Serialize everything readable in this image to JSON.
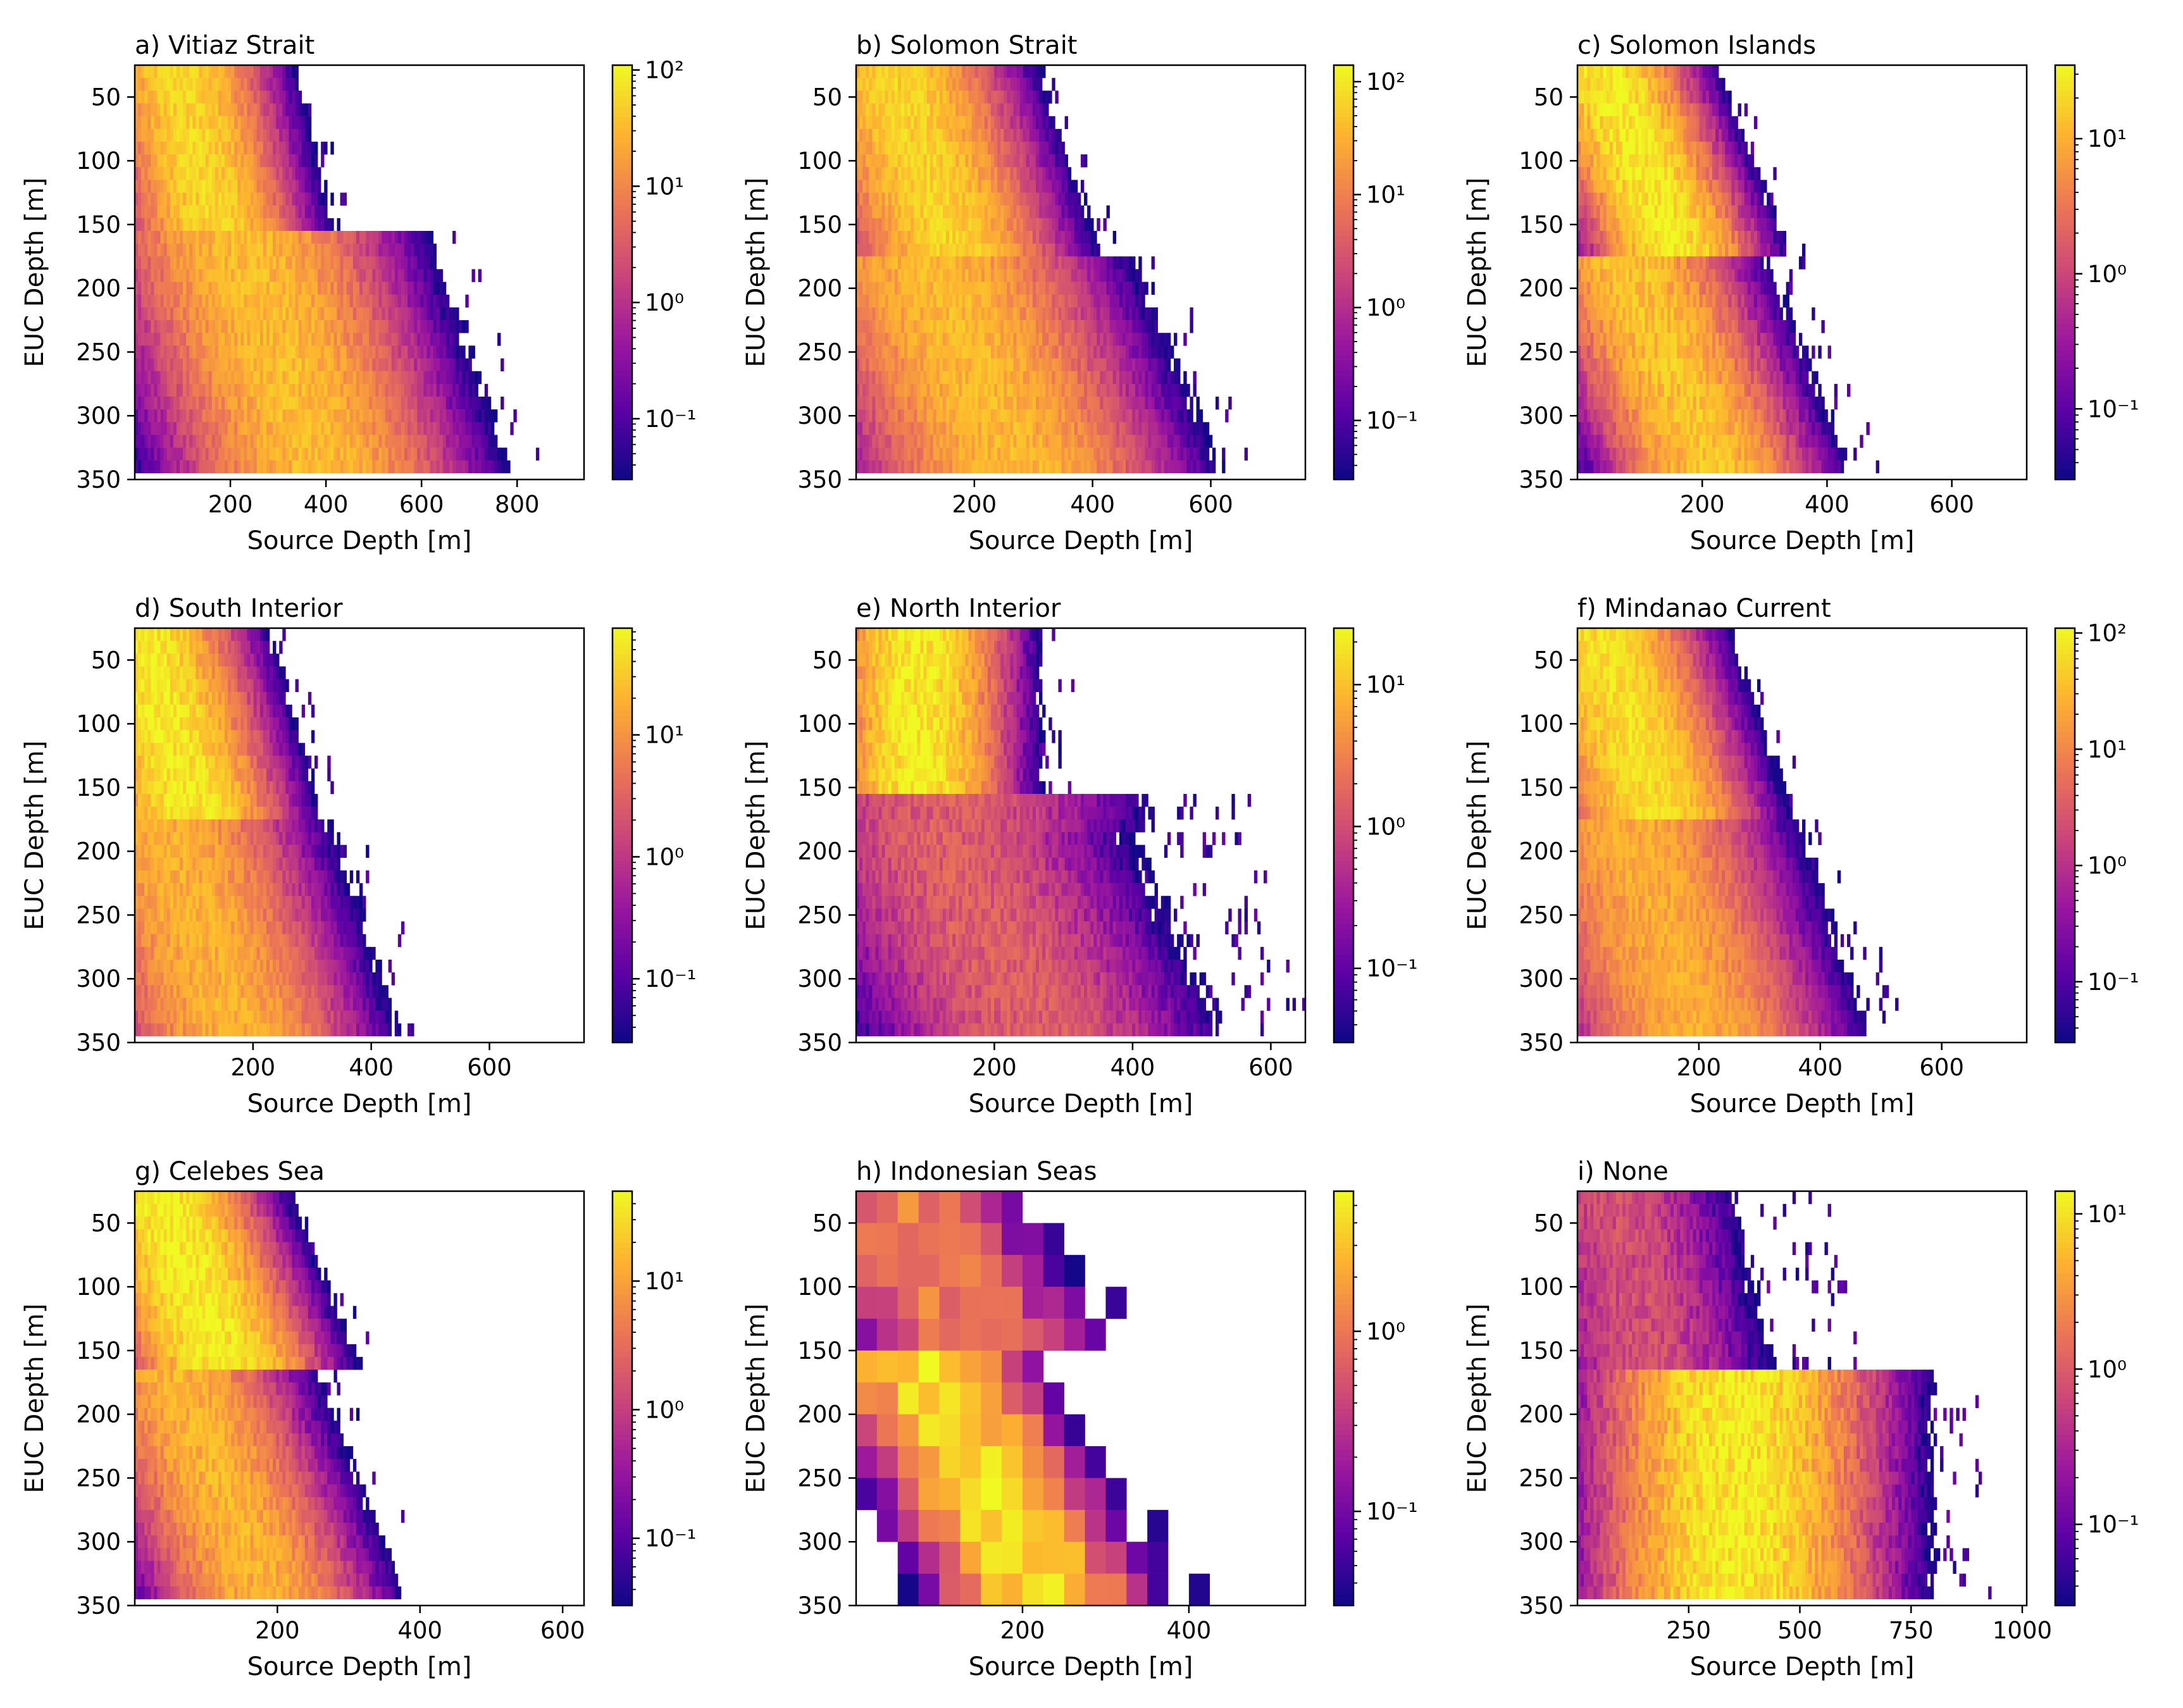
{
  "colormap": [
    "#0d0887",
    "#5c01a6",
    "#9c179e",
    "#cc4778",
    "#ed7953",
    "#fdb42f",
    "#f0f921"
  ],
  "ylabel": "EUC Depth [m]",
  "xlabel": "Source Depth [m]",
  "chart_data": [
    {
      "type": "heatmap",
      "title": "a) Vitiaz Strait",
      "xlabel": "Source Depth [m]",
      "ylabel": "EUC Depth [m]",
      "xlim": [
        0,
        940
      ],
      "ylim": [
        350,
        25
      ],
      "x_ticks": [
        200,
        400,
        600,
        800
      ],
      "y_ticks": [
        50,
        100,
        150,
        200,
        250,
        300,
        350
      ],
      "color_scale": "log",
      "clim": [
        0.03,
        110
      ],
      "cb_ticks": [
        {
          "v": 0.1,
          "label": "10⁻¹"
        },
        {
          "v": 1,
          "label": "10⁰"
        },
        {
          "v": 10,
          "label": "10¹"
        },
        {
          "v": 100,
          "label": "10²"
        }
      ],
      "bands": [
        {
          "from": 25,
          "to": 160,
          "center": 90,
          "slope": 0.6,
          "spread": 90,
          "peak": 60,
          "xmax": 580
        },
        {
          "from": 160,
          "to": 350,
          "center": 220,
          "slope": 0.9,
          "spread": 150,
          "peak": 35,
          "xmax": 960
        }
      ]
    },
    {
      "type": "heatmap",
      "title": "b) Solomon Strait",
      "xlabel": "Source Depth [m]",
      "ylabel": "EUC Depth [m]",
      "xlim": [
        0,
        760
      ],
      "ylim": [
        350,
        25
      ],
      "x_ticks": [
        200,
        400,
        600
      ],
      "y_ticks": [
        50,
        100,
        150,
        200,
        250,
        300,
        350
      ],
      "color_scale": "log",
      "clim": [
        0.03,
        140
      ],
      "cb_ticks": [
        {
          "v": 0.1,
          "label": "10⁻¹"
        },
        {
          "v": 1,
          "label": "10⁰"
        },
        {
          "v": 10,
          "label": "10¹"
        },
        {
          "v": 100,
          "label": "10²"
        }
      ],
      "bands": [
        {
          "from": 25,
          "to": 175,
          "center": 60,
          "slope": 0.7,
          "spread": 90,
          "peak": 70,
          "xmax": 560
        },
        {
          "from": 175,
          "to": 350,
          "center": 120,
          "slope": 0.9,
          "spread": 130,
          "peak": 40,
          "xmax": 780
        }
      ]
    },
    {
      "type": "heatmap",
      "title": "c) Solomon Islands",
      "xlabel": "Source Depth [m]",
      "ylabel": "EUC Depth [m]",
      "xlim": [
        0,
        720
      ],
      "ylim": [
        350,
        25
      ],
      "x_ticks": [
        200,
        400,
        600
      ],
      "y_ticks": [
        50,
        100,
        150,
        200,
        250,
        300,
        350
      ],
      "color_scale": "log",
      "clim": [
        0.03,
        35
      ],
      "cb_ticks": [
        {
          "v": 0.1,
          "label": "10⁻¹"
        },
        {
          "v": 1,
          "label": "10⁰"
        },
        {
          "v": 10,
          "label": "10¹"
        }
      ],
      "bands": [
        {
          "from": 25,
          "to": 175,
          "center": 40,
          "slope": 0.8,
          "spread": 70,
          "peak": 30,
          "xmax": 500
        },
        {
          "from": 175,
          "to": 350,
          "center": 80,
          "slope": 0.8,
          "spread": 90,
          "peak": 15,
          "xmax": 740
        }
      ]
    },
    {
      "type": "heatmap",
      "title": "d) South Interior",
      "xlabel": "Source Depth [m]",
      "ylabel": "EUC Depth [m]",
      "xlim": [
        0,
        760
      ],
      "ylim": [
        350,
        25
      ],
      "x_ticks": [
        200,
        400,
        600
      ],
      "y_ticks": [
        50,
        100,
        150,
        200,
        250,
        300,
        350
      ],
      "color_scale": "log",
      "clim": [
        0.03,
        75
      ],
      "cb_ticks": [
        {
          "v": 0.1,
          "label": "10⁻¹"
        },
        {
          "v": 1,
          "label": "10⁰"
        },
        {
          "v": 10,
          "label": "10¹"
        }
      ],
      "bands": [
        {
          "from": 25,
          "to": 175,
          "center": 10,
          "slope": 0.6,
          "spread": 80,
          "peak": 60,
          "xmax": 500
        },
        {
          "from": 175,
          "to": 350,
          "center": 50,
          "slope": 0.7,
          "spread": 110,
          "peak": 20,
          "xmax": 780
        }
      ]
    },
    {
      "type": "heatmap",
      "title": "e) North Interior",
      "xlabel": "Source Depth [m]",
      "ylabel": "EUC Depth [m]",
      "xlim": [
        0,
        650
      ],
      "ylim": [
        350,
        25
      ],
      "x_ticks": [
        200,
        400,
        600
      ],
      "y_ticks": [
        50,
        100,
        150,
        200,
        250,
        300,
        350
      ],
      "color_scale": "log",
      "clim": [
        0.03,
        25
      ],
      "cb_ticks": [
        {
          "v": 0.1,
          "label": "10⁻¹"
        },
        {
          "v": 1,
          "label": "10⁰"
        },
        {
          "v": 10,
          "label": "10¹"
        }
      ],
      "bands": [
        {
          "from": 25,
          "to": 160,
          "center": 90,
          "slope": 0.0,
          "spread": 70,
          "peak": 22,
          "xmax": 330
        },
        {
          "from": 160,
          "to": 190,
          "center": 130,
          "slope": 0.0,
          "spread": 150,
          "peak": 1.5,
          "xmax": 600
        },
        {
          "from": 190,
          "to": 350,
          "center": 120,
          "slope": 0.9,
          "spread": 140,
          "peak": 1.6,
          "xmax": 660
        }
      ]
    },
    {
      "type": "heatmap",
      "title": "f) Mindanao Current",
      "xlabel": "Source Depth [m]",
      "ylabel": "EUC Depth [m]",
      "xlim": [
        0,
        740
      ],
      "ylim": [
        350,
        25
      ],
      "x_ticks": [
        200,
        400,
        600
      ],
      "y_ticks": [
        50,
        100,
        150,
        200,
        250,
        300,
        350
      ],
      "color_scale": "log",
      "clim": [
        0.03,
        110
      ],
      "cb_ticks": [
        {
          "v": 0.1,
          "label": "10⁻¹"
        },
        {
          "v": 1,
          "label": "10⁰"
        },
        {
          "v": 10,
          "label": "10¹"
        },
        {
          "v": 100,
          "label": "10²"
        }
      ],
      "bands": [
        {
          "from": 25,
          "to": 175,
          "center": 30,
          "slope": 0.7,
          "spread": 80,
          "peak": 70,
          "xmax": 520
        },
        {
          "from": 175,
          "to": 350,
          "center": 80,
          "slope": 0.7,
          "spread": 110,
          "peak": 25,
          "xmax": 760
        }
      ]
    },
    {
      "type": "heatmap",
      "title": "g) Celebes Sea",
      "xlabel": "Source Depth [m]",
      "ylabel": "EUC Depth [m]",
      "xlim": [
        0,
        630
      ],
      "ylim": [
        350,
        25
      ],
      "x_ticks": [
        200,
        400,
        600
      ],
      "y_ticks": [
        50,
        100,
        150,
        200,
        250,
        300,
        350
      ],
      "color_scale": "log",
      "clim": [
        0.03,
        50
      ],
      "cb_ticks": [
        {
          "v": 0.1,
          "label": "10⁻¹"
        },
        {
          "v": 1,
          "label": "10⁰"
        },
        {
          "v": 10,
          "label": "10¹"
        }
      ],
      "bands": [
        {
          "from": 25,
          "to": 170,
          "center": 30,
          "slope": 0.7,
          "spread": 70,
          "peak": 45,
          "xmax": 420
        },
        {
          "from": 170,
          "to": 350,
          "center": 60,
          "slope": 0.7,
          "spread": 80,
          "peak": 15,
          "xmax": 640
        }
      ]
    },
    {
      "type": "heatmap",
      "title": "h) Indonesian Seas",
      "xlabel": "Source Depth [m]",
      "ylabel": "EUC Depth [m]",
      "xlim": [
        0,
        540
      ],
      "ylim": [
        350,
        25
      ],
      "x_ticks": [
        200,
        400
      ],
      "y_ticks": [
        50,
        100,
        150,
        200,
        250,
        300,
        350
      ],
      "color_scale": "log",
      "clim": [
        0.03,
        6
      ],
      "cb_ticks": [
        {
          "v": 0.1,
          "label": "10⁻¹"
        },
        {
          "v": 1,
          "label": "10⁰"
        }
      ],
      "coarse": true,
      "bands": [
        {
          "from": 25,
          "to": 150,
          "center": 30,
          "slope": 1.0,
          "spread": 90,
          "peak": 1.2,
          "xmax": 330
        },
        {
          "from": 150,
          "to": 350,
          "center": 70,
          "slope": 0.8,
          "spread": 70,
          "peak": 4.5,
          "xmax": 550
        }
      ]
    },
    {
      "type": "heatmap",
      "title": "i) None",
      "xlabel": "Source Depth [m]",
      "ylabel": "EUC Depth [m]",
      "xlim": [
        0,
        1010
      ],
      "ylim": [
        350,
        25
      ],
      "x_ticks": [
        250,
        500,
        750,
        1000
      ],
      "y_ticks": [
        50,
        100,
        150,
        200,
        250,
        300,
        350
      ],
      "color_scale": "log",
      "clim": [
        0.03,
        14
      ],
      "cb_ticks": [
        {
          "v": 0.1,
          "label": "10⁻¹"
        },
        {
          "v": 1,
          "label": "10⁰"
        },
        {
          "v": 10,
          "label": "10¹"
        }
      ],
      "bands": [
        {
          "from": 25,
          "to": 170,
          "center": 80,
          "slope": 0.6,
          "spread": 150,
          "peak": 0.8,
          "xmax": 700
        },
        {
          "from": 170,
          "to": 350,
          "center": 360,
          "slope": 0.0,
          "spread": 180,
          "peak": 12,
          "xmax": 1020
        }
      ]
    }
  ]
}
